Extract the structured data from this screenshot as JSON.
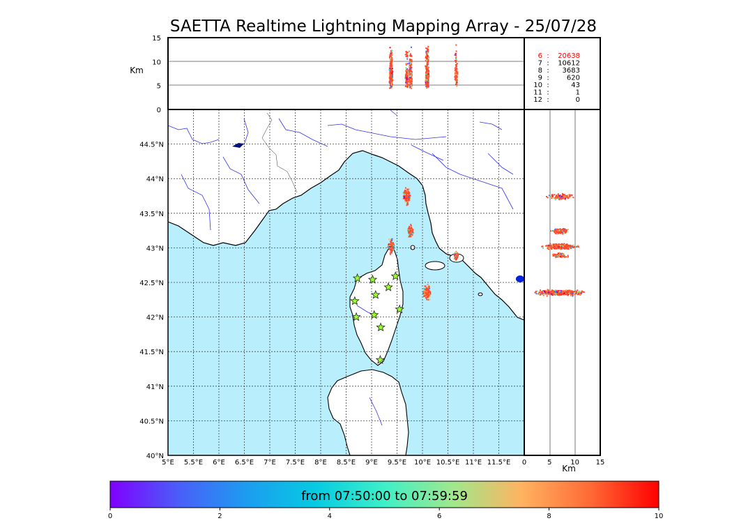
{
  "title": "SAETTA Realtime Lightning Mapping Array - 25/07/28",
  "alt_panel": {
    "ylabel": "Km",
    "y_ticks": [
      "0",
      "5",
      "10",
      "15"
    ]
  },
  "side_panel": {
    "xlabel": "Km",
    "x_ticks": [
      "0",
      "5",
      "10",
      "15"
    ]
  },
  "station_counts": [
    {
      "stations": "6",
      "count": "20638",
      "highlight": true
    },
    {
      "stations": "7",
      "count": "10612",
      "highlight": false
    },
    {
      "stations": "8",
      "count": "3683",
      "highlight": false
    },
    {
      "stations": "9",
      "count": "620",
      "highlight": false
    },
    {
      "stations": "10",
      "count": "43",
      "highlight": false
    },
    {
      "stations": "11",
      "count": "1",
      "highlight": false
    },
    {
      "stations": "12",
      "count": "0",
      "highlight": false
    }
  ],
  "map": {
    "lon_labels": [
      "5°E",
      "5.5°E",
      "6°E",
      "6.5°E",
      "7°E",
      "7.5°E",
      "8°E",
      "8.5°E",
      "9°E",
      "9.5°E",
      "10°E",
      "10.5°E",
      "11°E",
      "11.5°E"
    ],
    "lat_labels": [
      "40°N",
      "40.5°N",
      "41°N",
      "41.5°N",
      "42°N",
      "42.5°N",
      "43°N",
      "43.5°N",
      "44°N",
      "44.5°N"
    ],
    "sea_color": "#b9effc",
    "land_color": "#ffffff",
    "river_color": "#3333ee",
    "station_marker": "star",
    "station_color": "#9aff2a",
    "stations": [
      {
        "lon": 8.72,
        "lat": 42.56
      },
      {
        "lon": 9.02,
        "lat": 42.54
      },
      {
        "lon": 9.47,
        "lat": 42.59
      },
      {
        "lon": 9.33,
        "lat": 42.43
      },
      {
        "lon": 9.08,
        "lat": 42.32
      },
      {
        "lon": 8.67,
        "lat": 42.23
      },
      {
        "lon": 9.55,
        "lat": 42.11
      },
      {
        "lon": 8.7,
        "lat": 42.0
      },
      {
        "lon": 9.05,
        "lat": 42.03
      },
      {
        "lon": 9.18,
        "lat": 41.85
      },
      {
        "lon": 9.17,
        "lat": 41.38
      }
    ],
    "lightning_clusters": [
      {
        "lon": 9.37,
        "lat": 43.03,
        "spread": 0.06
      },
      {
        "lon": 9.75,
        "lat": 43.25,
        "spread": 0.05
      },
      {
        "lon": 10.08,
        "lat": 42.36,
        "spread": 0.07
      },
      {
        "lon": 10.65,
        "lat": 42.9,
        "spread": 0.04
      },
      {
        "lon": 9.68,
        "lat": 43.75,
        "spread": 0.07
      }
    ]
  },
  "colorbar": {
    "label": "from 07:50:00 to 07:59:59",
    "ticks": [
      "0",
      "2",
      "4",
      "6",
      "8",
      "10"
    ],
    "colors": [
      "#7f00ff",
      "#3b6ef7",
      "#06b6e8",
      "#3ee8c6",
      "#86f1a0",
      "#c6d37e",
      "#ffb360",
      "#ff6a35",
      "#ff0000"
    ]
  }
}
